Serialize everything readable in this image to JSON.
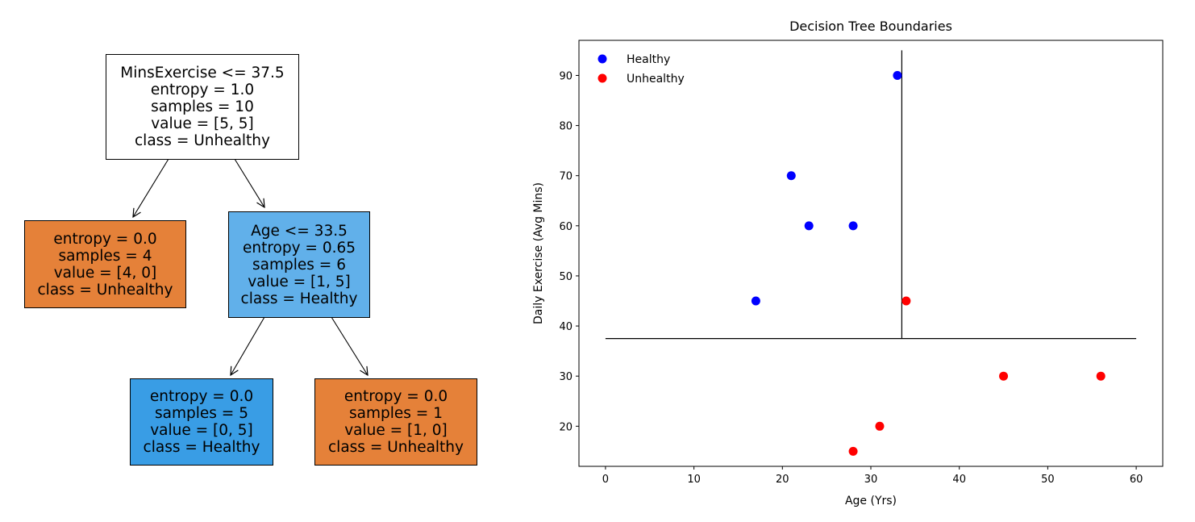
{
  "tree": {
    "nodes": [
      {
        "id": "root",
        "color": "#ffffff",
        "lines": [
          "MinsExercise <= 37.5",
          "entropy = 1.0",
          "samples = 10",
          "value = [5, 5]",
          "class = Unhealthy"
        ]
      },
      {
        "id": "left",
        "color": "#e58139",
        "lines": [
          "entropy = 0.0",
          "samples = 4",
          "value = [4, 0]",
          "class = Unhealthy"
        ]
      },
      {
        "id": "right",
        "color": "#61b0ea",
        "lines": [
          "Age <= 33.5",
          "entropy = 0.65",
          "samples = 6",
          "value = [1, 5]",
          "class = Healthy"
        ]
      },
      {
        "id": "right-left",
        "color": "#399de5",
        "lines": [
          "entropy = 0.0",
          "samples = 5",
          "value = [0, 5]",
          "class = Healthy"
        ]
      },
      {
        "id": "right-right",
        "color": "#e58139",
        "lines": [
          "entropy = 0.0",
          "samples = 1",
          "value = [1, 0]",
          "class = Unhealthy"
        ]
      }
    ]
  },
  "chart_data": {
    "type": "scatter",
    "title": "Decision Tree Boundaries",
    "xlabel": "Age (Yrs)",
    "ylabel": "Daily Exercise (Avg Mins)",
    "xlim": [
      -3,
      63
    ],
    "ylim": [
      12,
      97
    ],
    "xticks": [
      0,
      10,
      20,
      30,
      40,
      50,
      60
    ],
    "yticks": [
      20,
      30,
      40,
      50,
      60,
      70,
      80,
      90
    ],
    "grid": false,
    "legend_position": "top-left",
    "series": [
      {
        "name": "Healthy",
        "color": "#0000ff",
        "x": [
          33,
          21,
          23,
          28,
          17
        ],
        "y": [
          90,
          70,
          60,
          60,
          45
        ]
      },
      {
        "name": "Unhealthy",
        "color": "#ff0000",
        "x": [
          34,
          45,
          56,
          31,
          28
        ],
        "y": [
          45,
          30,
          30,
          20,
          15
        ]
      }
    ],
    "boundaries": [
      {
        "orientation": "horizontal",
        "y": 37.5,
        "x_from": 0,
        "x_to": 60
      },
      {
        "orientation": "vertical",
        "x": 33.5,
        "y_from": 37.5,
        "y_to": 95
      }
    ]
  }
}
